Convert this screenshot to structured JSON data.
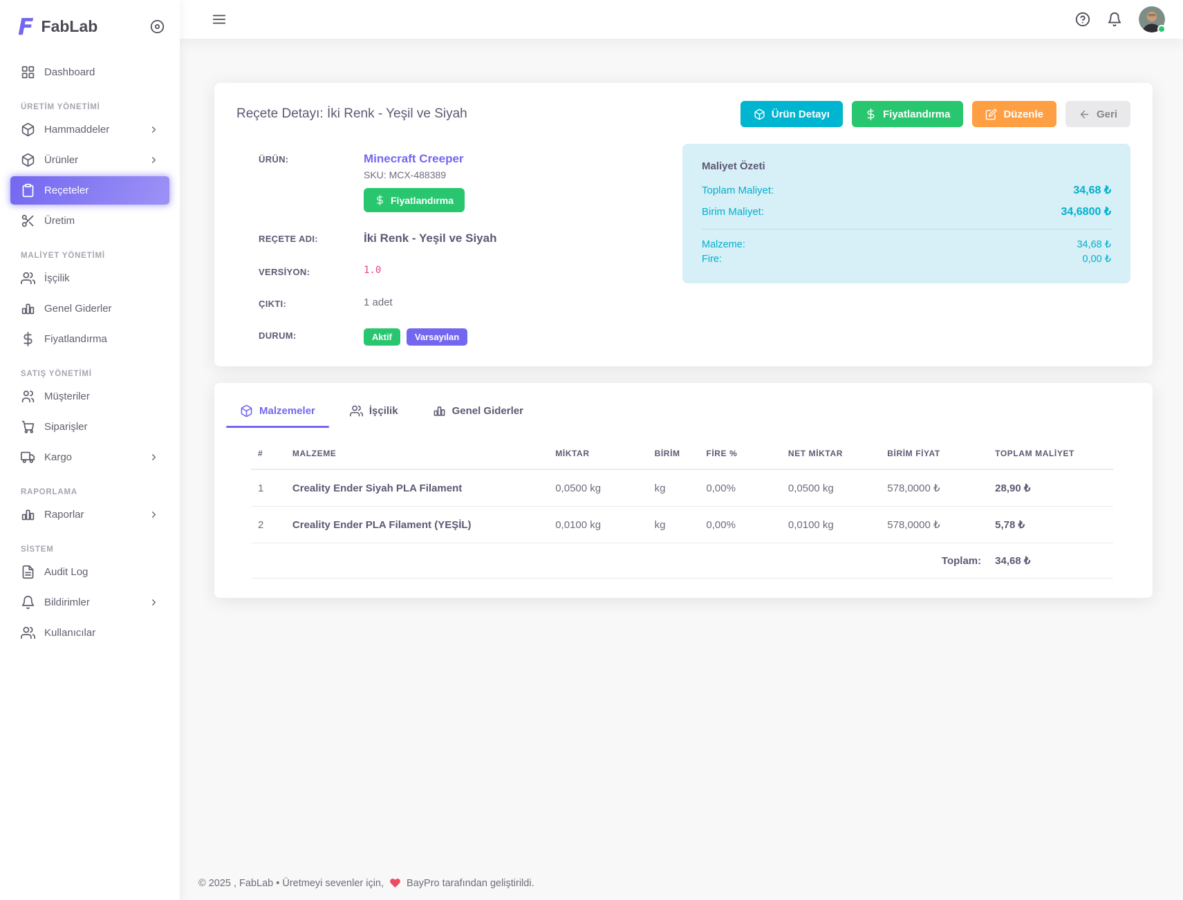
{
  "app": {
    "name": "FabLab",
    "logo_letter": "F"
  },
  "sidebar": {
    "sections": [
      {
        "title": "",
        "items": [
          {
            "label": "Dashboard",
            "icon": "dashboard-icon"
          }
        ]
      },
      {
        "title": "ÜRETİM YÖNETİMİ",
        "items": [
          {
            "label": "Hammaddeler",
            "icon": "package-icon",
            "chevron": true
          },
          {
            "label": "Ürünler",
            "icon": "package-icon",
            "chevron": true
          },
          {
            "label": "Reçeteler",
            "icon": "clipboard-icon",
            "active": true
          },
          {
            "label": "Üretim",
            "icon": "scissors-icon"
          }
        ]
      },
      {
        "title": "MALİYET YÖNETİMİ",
        "items": [
          {
            "label": "İşçilik",
            "icon": "users-icon"
          },
          {
            "label": "Genel Giderler",
            "icon": "bar-chart-icon"
          },
          {
            "label": "Fiyatlandırma",
            "icon": "dollar-icon"
          }
        ]
      },
      {
        "title": "SATIŞ YÖNETİMİ",
        "items": [
          {
            "label": "Müşteriler",
            "icon": "users-group-icon"
          },
          {
            "label": "Siparişler",
            "icon": "cart-icon"
          },
          {
            "label": "Kargo",
            "icon": "truck-icon",
            "chevron": true
          }
        ]
      },
      {
        "title": "RAPORLAMA",
        "items": [
          {
            "label": "Raporlar",
            "icon": "bar-chart-icon",
            "chevron": true
          }
        ]
      },
      {
        "title": "SİSTEM",
        "items": [
          {
            "label": "Audit Log",
            "icon": "file-icon"
          },
          {
            "label": "Bildirimler",
            "icon": "bell-icon",
            "chevron": true
          },
          {
            "label": "Kullanıcılar",
            "icon": "users-icon"
          }
        ]
      }
    ]
  },
  "detail_card": {
    "title": "Reçete Detayı: İki Renk - Yeşil ve Siyah",
    "actions": [
      {
        "label": "Ürün Detayı",
        "icon": "package-icon",
        "bg": "#00b5d0",
        "fg": "#ffffff"
      },
      {
        "label": "Fiyatlandırma",
        "icon": "dollar-icon",
        "bg": "#28c76f",
        "fg": "#ffffff"
      },
      {
        "label": "Düzenle",
        "icon": "edit-icon",
        "bg": "#ff9f43",
        "fg": "#ffffff"
      },
      {
        "label": "Geri",
        "icon": "arrow-left-icon",
        "bg": "#e9e9ec",
        "fg": "#82868b"
      }
    ],
    "fields": {
      "urun_label": "ÜRÜN:",
      "urun_name": "Minecraft Creeper",
      "urun_sku": "SKU: MCX-488389",
      "urun_button": "Fiyatlandırma",
      "recete_label": "REÇETE ADI:",
      "recete_value": "İki Renk - Yeşil ve Siyah",
      "versiyon_label": "VERSİYON:",
      "versiyon_value": "1.0",
      "cikti_label": "ÇIKTI:",
      "cikti_value": "1 adet",
      "durum_label": "DURUM:",
      "badges": [
        {
          "label": "Aktif",
          "color": "#28c76f"
        },
        {
          "label": "Varsayılan",
          "color": "#7367f0"
        }
      ]
    },
    "cost_summary": {
      "title": "Maliyet Özeti",
      "accent_color": "#00b0ce",
      "rows": [
        {
          "label": "Toplam Maliyet:",
          "value": "34,68 ₺"
        },
        {
          "label": "Birim Maliyet:",
          "value": "34,6800 ₺"
        }
      ],
      "sub_rows": [
        {
          "label": "Malzeme:",
          "value": "34,68 ₺"
        },
        {
          "label": "Fire:",
          "value": "0,00 ₺"
        }
      ]
    }
  },
  "tabs": [
    {
      "label": "Malzemeler",
      "icon": "package-icon",
      "active": true
    },
    {
      "label": "İşçilik",
      "icon": "users-icon"
    },
    {
      "label": "Genel Giderler",
      "icon": "bar-chart-icon"
    }
  ],
  "materials_table": {
    "headers": [
      "#",
      "MALZEME",
      "MİKTAR",
      "BİRİM",
      "FİRE %",
      "NET MİKTAR",
      "BİRİM FİYAT",
      "TOPLAM MALİYET"
    ],
    "rows": [
      [
        "1",
        "Creality Ender Siyah PLA Filament",
        "0,0500 kg",
        "kg",
        "0,00%",
        "0,0500 kg",
        "578,0000 ₺",
        "28,90 ₺"
      ],
      [
        "2",
        "Creality Ender PLA Filament (YEŞİL)",
        "0,0100 kg",
        "kg",
        "0,00%",
        "0,0100 kg",
        "578,0000 ₺",
        "5,78 ₺"
      ]
    ],
    "total_label": "Toplam:",
    "total_value": "34,68 ₺"
  },
  "footer": {
    "text_before_heart": "© 2025 , FabLab • Üretmeyi sevenler için,",
    "text_after_heart": "BayPro tarafından geliştirildi."
  }
}
